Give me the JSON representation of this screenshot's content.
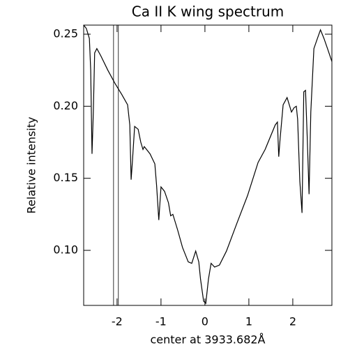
{
  "chart_data": {
    "type": "line",
    "title": "Ca II K wing spectrum",
    "xlabel": "center at 3933.682Å",
    "ylabel": "Relative intensity",
    "xlim": [
      -2.76,
      2.89
    ],
    "ylim": [
      0.0618,
      0.2563
    ],
    "xticks": [
      -2,
      -1,
      0,
      1,
      2
    ],
    "yticks": [
      {
        "value": 0.1,
        "label": "0.10"
      },
      0.15,
      {
        "value": 0.2,
        "label": "0.20"
      },
      0.25
    ],
    "vlines": [
      -2.08,
      -1.97
    ],
    "color": "#000000",
    "x": [
      -2.76,
      -2.7,
      -2.63,
      -2.6,
      -2.57,
      -2.54,
      -2.51,
      -2.46,
      -2.37,
      -2.21,
      -2.05,
      -1.89,
      -1.76,
      -1.71,
      -1.68,
      -1.65,
      -1.6,
      -1.52,
      -1.46,
      -1.41,
      -1.38,
      -1.25,
      -1.14,
      -1.1,
      -1.05,
      -1.0,
      -0.92,
      -0.83,
      -0.78,
      -0.73,
      -0.62,
      -0.51,
      -0.38,
      -0.3,
      -0.21,
      -0.14,
      -0.1,
      -0.03,
      0.02,
      0.08,
      0.14,
      0.22,
      0.33,
      0.49,
      0.73,
      0.97,
      1.21,
      1.37,
      1.6,
      1.65,
      1.68,
      1.71,
      1.78,
      1.87,
      1.97,
      2.03,
      2.08,
      2.11,
      2.16,
      2.21,
      2.25,
      2.29,
      2.33,
      2.37,
      2.41,
      2.48,
      2.56,
      2.63,
      2.71,
      2.79,
      2.89
    ],
    "values": [
      0.2563,
      0.254,
      0.247,
      0.225,
      0.167,
      0.196,
      0.237,
      0.24,
      0.235,
      0.225,
      0.216,
      0.208,
      0.201,
      0.187,
      0.149,
      0.162,
      0.186,
      0.184,
      0.175,
      0.17,
      0.172,
      0.167,
      0.16,
      0.145,
      0.121,
      0.144,
      0.141,
      0.133,
      0.124,
      0.125,
      0.114,
      0.102,
      0.092,
      0.091,
      0.0995,
      0.092,
      0.08,
      0.0647,
      0.0632,
      0.08,
      0.091,
      0.0884,
      0.0898,
      0.0995,
      0.119,
      0.138,
      0.161,
      0.17,
      0.187,
      0.189,
      0.165,
      0.177,
      0.201,
      0.206,
      0.196,
      0.199,
      0.2,
      0.191,
      0.148,
      0.126,
      0.21,
      0.211,
      0.177,
      0.139,
      0.196,
      0.24,
      0.247,
      0.253,
      0.247,
      0.24,
      0.231
    ]
  }
}
